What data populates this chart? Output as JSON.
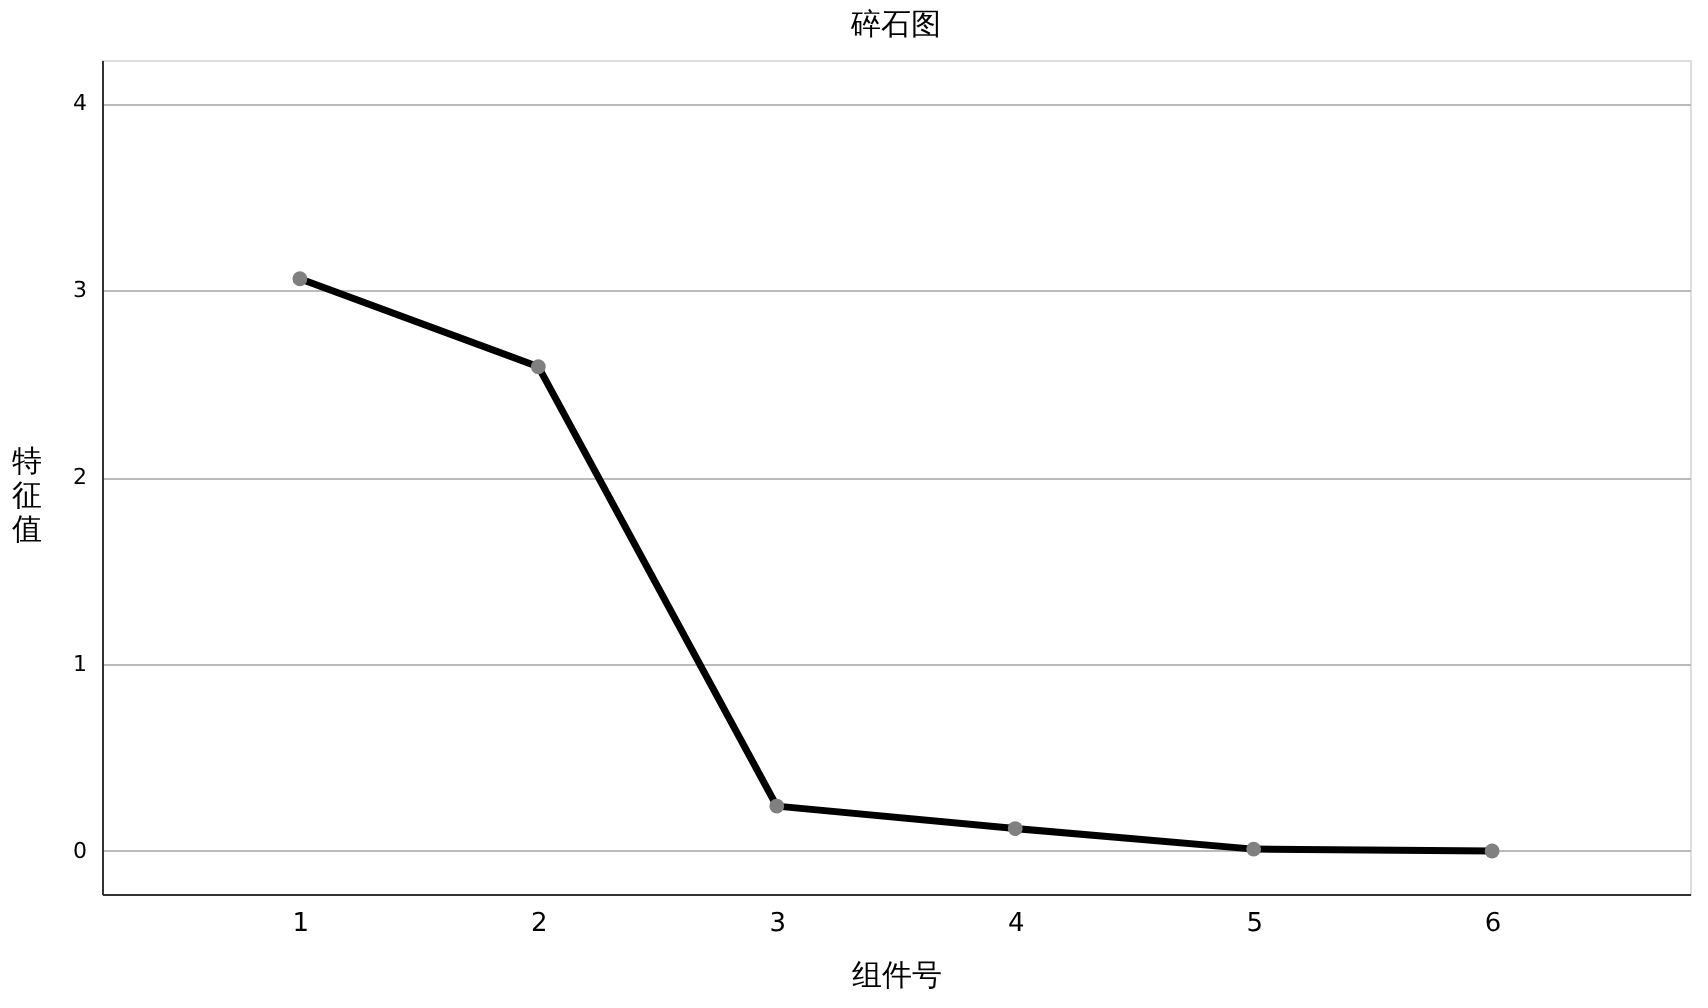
{
  "chart_data": {
    "type": "line",
    "title": "碎石图",
    "xlabel": "组件号",
    "ylabel": "特征值",
    "categories": [
      "1",
      "2",
      "3",
      "4",
      "5",
      "6"
    ],
    "series": [
      {
        "color": "#000000",
        "values": [
          3.06,
          2.59,
          0.24,
          0.12,
          0.01,
          0.0
        ]
      }
    ],
    "ylim": [
      -0.23,
      4.23
    ],
    "yticks": [
      0,
      1,
      2,
      3,
      4
    ],
    "grid": "y",
    "marker": "circle",
    "line_style": "solid"
  }
}
